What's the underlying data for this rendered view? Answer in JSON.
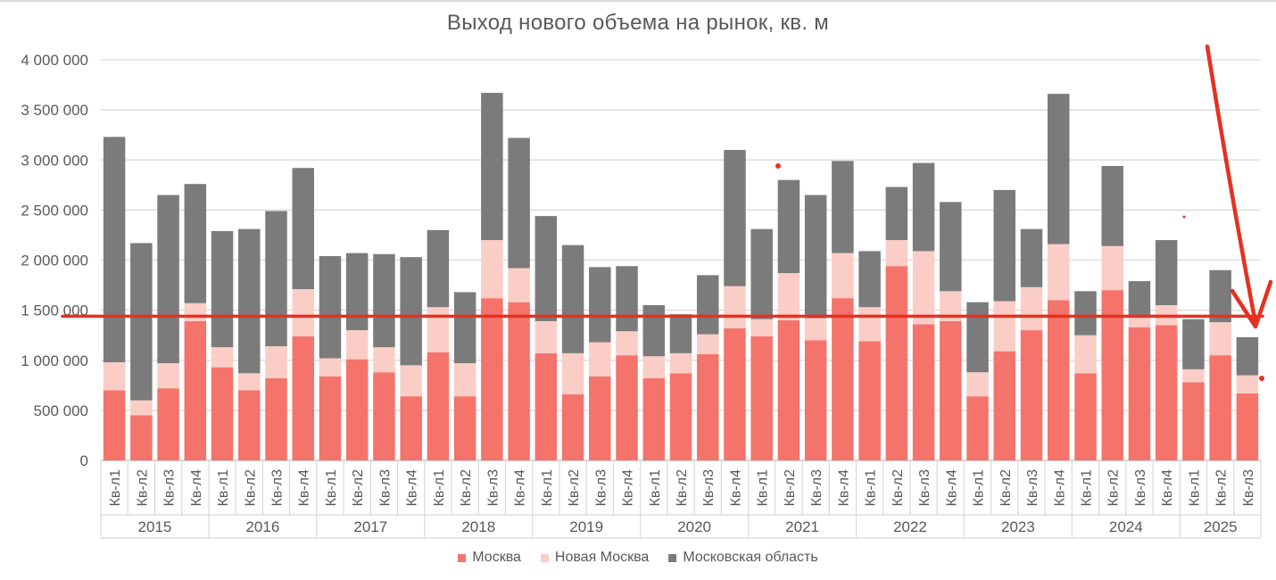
{
  "chart_data": {
    "type": "bar",
    "stacked": true,
    "title": "Выход нового объема на рынок, кв. м",
    "ylim": [
      0,
      4000000
    ],
    "yticks": [
      "0",
      "500 000",
      "1 000 000",
      "1 500 000",
      "2 000 000",
      "2 500 000",
      "3 000 000",
      "3 500 000",
      "4 000 000"
    ],
    "ytick_values": [
      0,
      500000,
      1000000,
      1500000,
      2000000,
      2500000,
      3000000,
      3500000,
      4000000
    ],
    "grid": true,
    "legend_position": "bottom",
    "years": [
      "2015",
      "2016",
      "2017",
      "2018",
      "2019",
      "2020",
      "2021",
      "2022",
      "2023",
      "2024",
      "2025"
    ],
    "categories": [
      "Кв-л1",
      "Кв-л2",
      "Кв-л3",
      "Кв-л4",
      "Кв-л1",
      "Кв-л2",
      "Кв-л3",
      "Кв-л4",
      "Кв-л1",
      "Кв-л2",
      "Кв-л3",
      "Кв-л4",
      "Кв-л1",
      "Кв-л2",
      "Кв-л3",
      "Кв-л4",
      "Кв-л1",
      "Кв-л2",
      "Кв-л3",
      "Кв-л4",
      "Кв-л1",
      "Кв-л2",
      "Кв-л3",
      "Кв-л4",
      "Кв-л1",
      "Кв-л2",
      "Кв-л3",
      "Кв-л4",
      "Кв-л1",
      "Кв-л2",
      "Кв-л3",
      "Кв-л4",
      "Кв-л1",
      "Кв-л2",
      "Кв-л3",
      "Кв-л4",
      "Кв-л1",
      "Кв-л2",
      "Кв-л3",
      "Кв-л4",
      "Кв-л1",
      "Кв-л2",
      "Кв-л3"
    ],
    "series": [
      {
        "name": "Москва",
        "color": "#f4736b",
        "values": [
          700000,
          450000,
          720000,
          1390000,
          930000,
          700000,
          820000,
          1240000,
          840000,
          1010000,
          880000,
          640000,
          1080000,
          640000,
          1620000,
          1580000,
          1070000,
          660000,
          840000,
          1050000,
          820000,
          870000,
          1060000,
          1320000,
          1240000,
          1400000,
          1200000,
          1620000,
          1190000,
          1940000,
          1360000,
          1390000,
          640000,
          1090000,
          1300000,
          1600000,
          870000,
          1700000,
          1330000,
          1350000,
          780000,
          1050000,
          670000
        ]
      },
      {
        "name": "Новая Москва",
        "color": "#fbcdc7",
        "values": [
          280000,
          150000,
          250000,
          180000,
          200000,
          170000,
          320000,
          470000,
          180000,
          290000,
          250000,
          310000,
          450000,
          330000,
          580000,
          340000,
          320000,
          410000,
          340000,
          240000,
          220000,
          200000,
          200000,
          420000,
          170000,
          470000,
          220000,
          450000,
          340000,
          260000,
          730000,
          300000,
          240000,
          500000,
          430000,
          560000,
          380000,
          440000,
          100000,
          200000,
          130000,
          330000,
          180000
        ]
      },
      {
        "name": "Московская область",
        "color": "#7b7b7b",
        "values": [
          2250000,
          1570000,
          1680000,
          1190000,
          1160000,
          1440000,
          1350000,
          1210000,
          1020000,
          770000,
          930000,
          1080000,
          770000,
          710000,
          1470000,
          1300000,
          1050000,
          1080000,
          750000,
          650000,
          510000,
          390000,
          590000,
          1360000,
          900000,
          930000,
          1230000,
          920000,
          560000,
          530000,
          880000,
          890000,
          700000,
          1110000,
          580000,
          1500000,
          440000,
          800000,
          360000,
          650000,
          500000,
          520000,
          380000
        ]
      }
    ],
    "annotation": {
      "type": "hand-drawn red horizontal line and arrow",
      "line_value": 1440000,
      "color": "#e53121"
    }
  }
}
